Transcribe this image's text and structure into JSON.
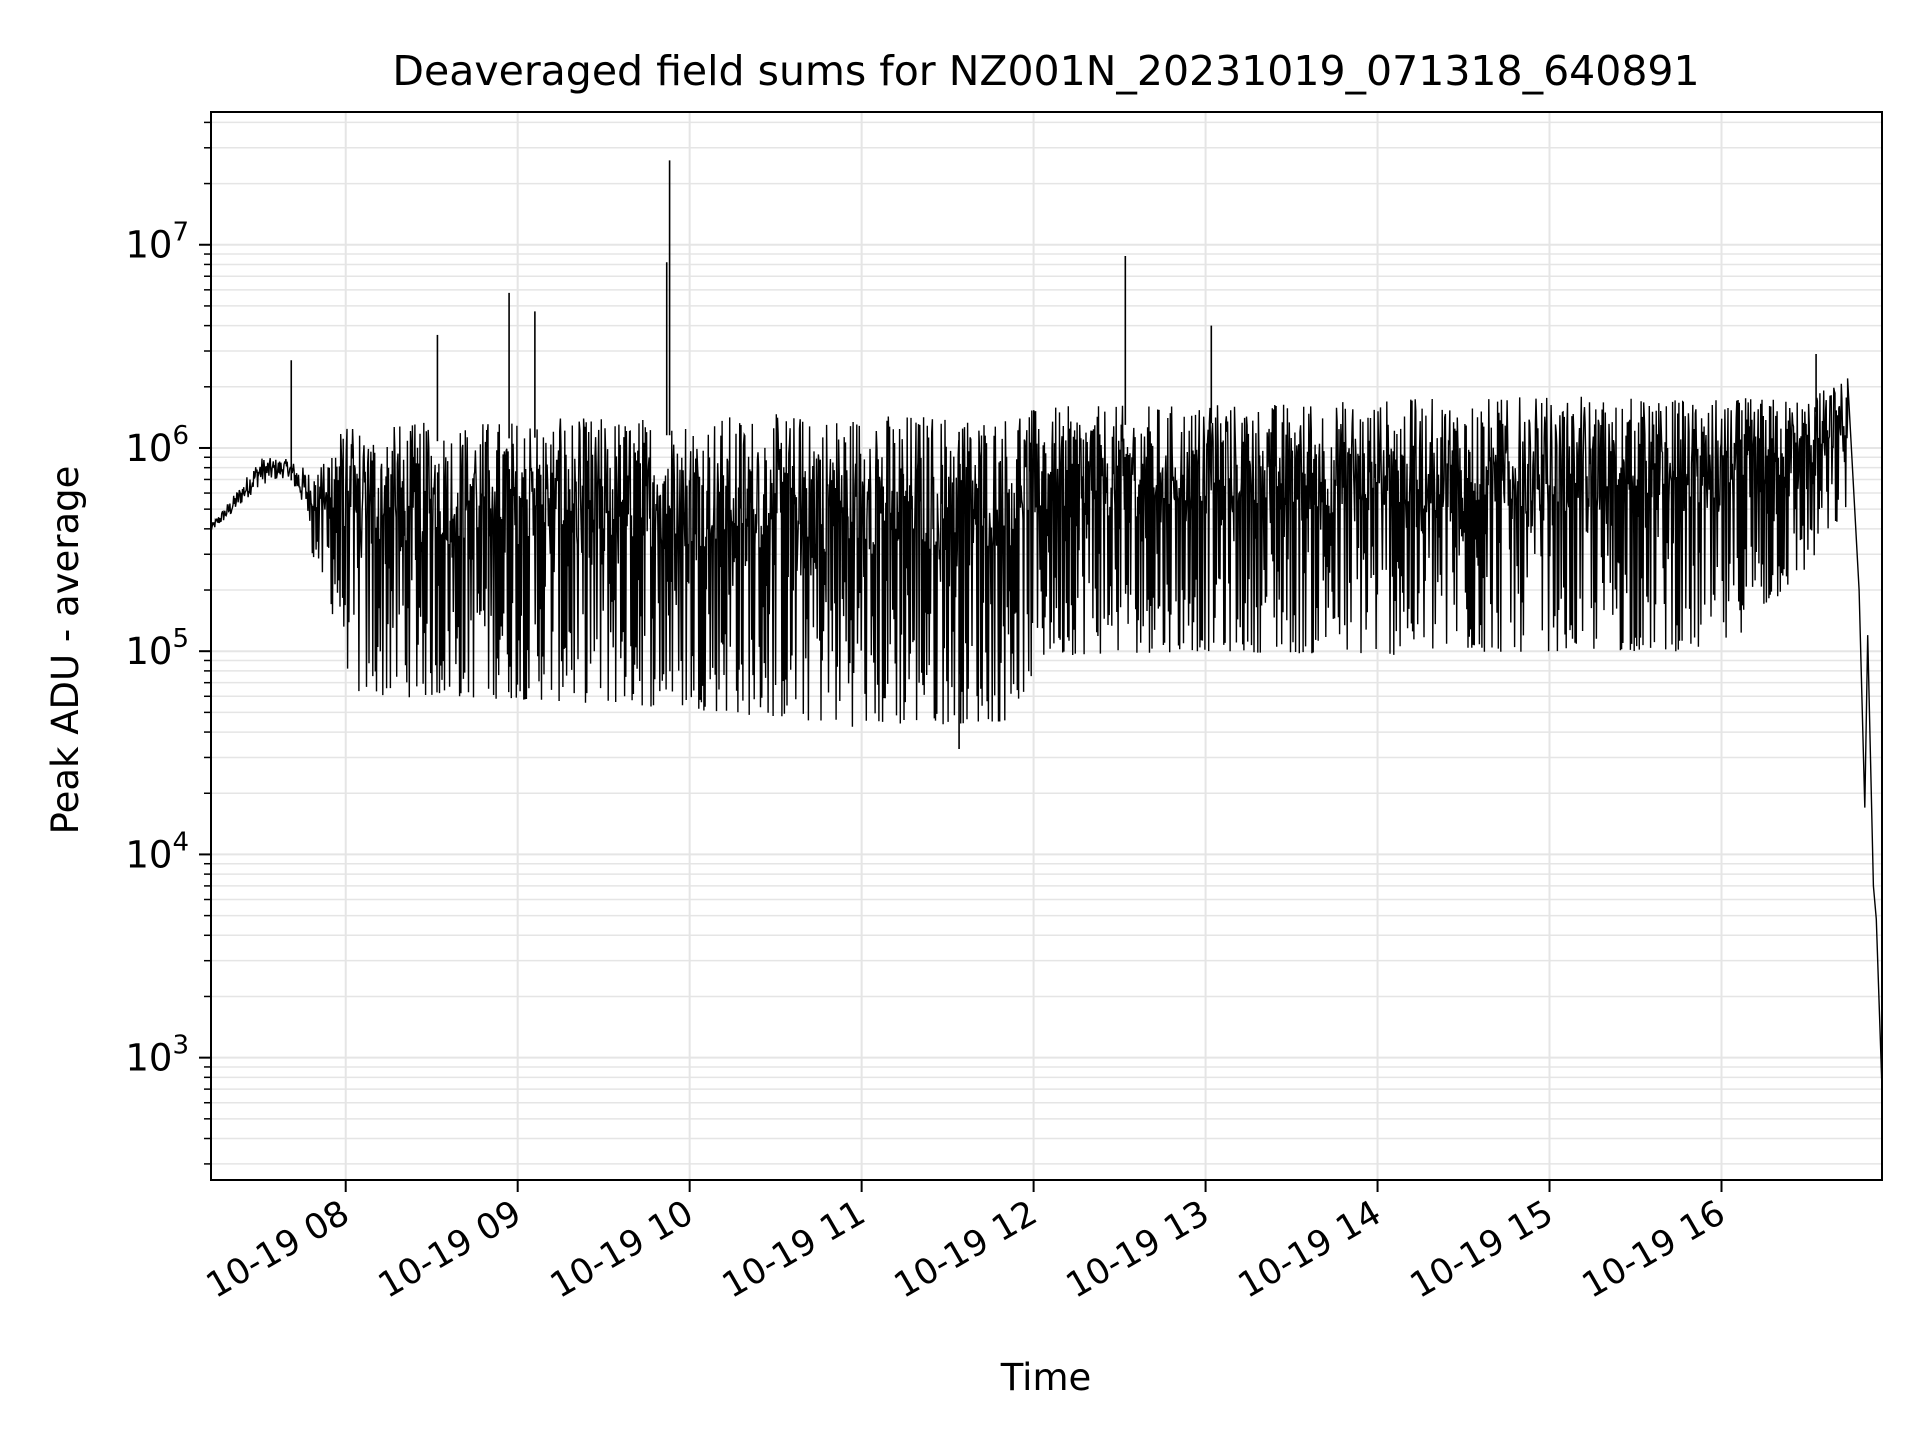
{
  "chart_data": {
    "type": "line",
    "title": "Deaveraged field sums for NZ001N_20231019_071318_640891",
    "xlabel": "Time",
    "ylabel": "Peak ADU - average",
    "x_axis": {
      "type": "datetime",
      "range": [
        "2023-10-19 07:13",
        "2023-10-19 16:56"
      ],
      "ticks": [
        {
          "value": "2023-10-19 08:00",
          "label": "10-19 08"
        },
        {
          "value": "2023-10-19 09:00",
          "label": "10-19 09"
        },
        {
          "value": "2023-10-19 10:00",
          "label": "10-19 10"
        },
        {
          "value": "2023-10-19 11:00",
          "label": "10-19 11"
        },
        {
          "value": "2023-10-19 12:00",
          "label": "10-19 12"
        },
        {
          "value": "2023-10-19 13:00",
          "label": "10-19 13"
        },
        {
          "value": "2023-10-19 14:00",
          "label": "10-19 14"
        },
        {
          "value": "2023-10-19 15:00",
          "label": "10-19 15"
        },
        {
          "value": "2023-10-19 16:00",
          "label": "10-19 16"
        }
      ]
    },
    "y_axis": {
      "scale": "log",
      "range": [
        250,
        45000000
      ],
      "ticks": [
        {
          "value": 1000,
          "base": "10",
          "exp": "3"
        },
        {
          "value": 10000,
          "base": "10",
          "exp": "4"
        },
        {
          "value": 100000,
          "base": "10",
          "exp": "5"
        },
        {
          "value": 1000000,
          "base": "10",
          "exp": "6"
        },
        {
          "value": 10000000,
          "base": "10",
          "exp": "7"
        }
      ]
    },
    "grid": true,
    "grid_minor": true,
    "line_color": "#000000",
    "grid_color": "#e5e5e5",
    "series": [
      {
        "envelope": [
          {
            "t": "2023-10-19 07:13",
            "low": 370000,
            "high": 420000
          },
          {
            "t": "2023-10-19 07:20",
            "low": 420000,
            "high": 560000
          },
          {
            "t": "2023-10-19 07:30",
            "low": 550000,
            "high": 900000
          },
          {
            "t": "2023-10-19 07:40",
            "low": 650000,
            "high": 880000
          },
          {
            "t": "2023-10-19 07:50",
            "low": 250000,
            "high": 750000
          },
          {
            "t": "2023-10-19 07:57",
            "low": 130000,
            "high": 1250000
          },
          {
            "t": "2023-10-19 08:03",
            "low": 60000,
            "high": 1300000
          },
          {
            "t": "2023-10-19 09:00",
            "low": 58000,
            "high": 1400000
          },
          {
            "t": "2023-10-19 10:00",
            "low": 52000,
            "high": 1450000
          },
          {
            "t": "2023-10-19 11:00",
            "low": 42000,
            "high": 1500000
          },
          {
            "t": "2023-10-19 11:50",
            "low": 45000,
            "high": 1500000
          },
          {
            "t": "2023-10-19 12:05",
            "low": 95000,
            "high": 1600000
          },
          {
            "t": "2023-10-19 13:00",
            "low": 100000,
            "high": 1650000
          },
          {
            "t": "2023-10-19 14:00",
            "low": 95000,
            "high": 1750000
          },
          {
            "t": "2023-10-19 15:00",
            "low": 100000,
            "high": 1800000
          },
          {
            "t": "2023-10-19 16:00",
            "low": 100000,
            "high": 1750000
          },
          {
            "t": "2023-10-19 16:30",
            "low": 250000,
            "high": 1800000
          },
          {
            "t": "2023-10-19 16:44",
            "low": 500000,
            "high": 2200000
          }
        ],
        "tail": [
          {
            "t": "2023-10-19 16:44",
            "y": 2200000
          },
          {
            "t": "2023-10-19 16:48",
            "y": 200000
          },
          {
            "t": "2023-10-19 16:50",
            "y": 17000
          },
          {
            "t": "2023-10-19 16:51",
            "y": 120000
          },
          {
            "t": "2023-10-19 16:53",
            "y": 7000
          },
          {
            "t": "2023-10-19 16:54",
            "y": 4800
          },
          {
            "t": "2023-10-19 16:56",
            "y": 700
          }
        ],
        "spikes": [
          {
            "t": "2023-10-19 07:41",
            "y": 2700000
          },
          {
            "t": "2023-10-19 08:32",
            "y": 3600000
          },
          {
            "t": "2023-10-19 08:57",
            "y": 5800000
          },
          {
            "t": "2023-10-19 09:06",
            "y": 4700000
          },
          {
            "t": "2023-10-19 09:53",
            "y": 26000000
          },
          {
            "t": "2023-10-19 09:52",
            "y": 8200000
          },
          {
            "t": "2023-10-19 11:34",
            "y": 33000
          },
          {
            "t": "2023-10-19 12:32",
            "y": 8800000
          },
          {
            "t": "2023-10-19 13:02",
            "y": 4000000
          },
          {
            "t": "2023-10-19 16:33",
            "y": 2900000
          }
        ]
      }
    ]
  }
}
